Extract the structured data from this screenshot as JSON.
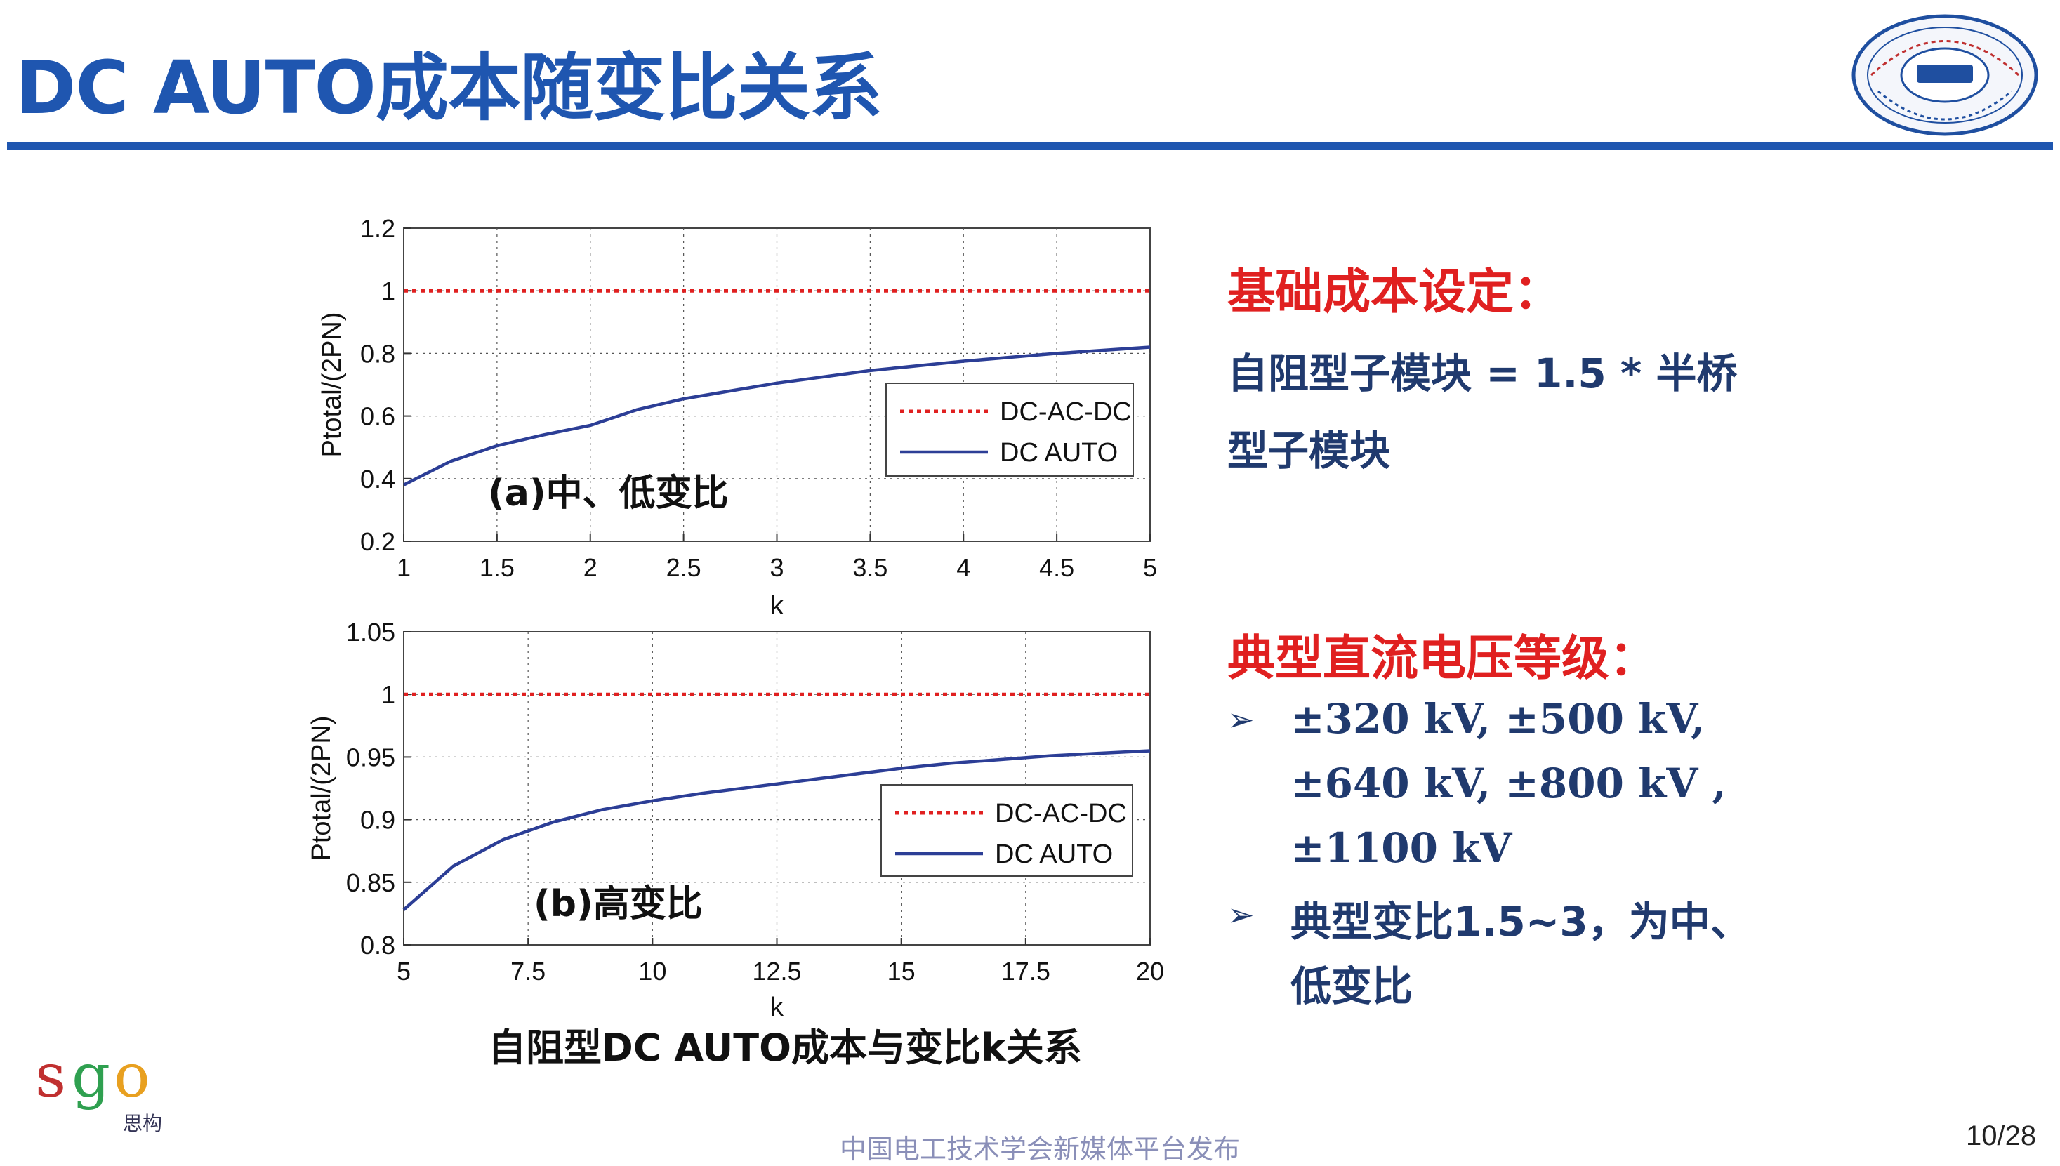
{
  "slide": {
    "title": "DC AUTO成本随变比关系",
    "caption": "自阻型DC AUTO成本与变比k关系",
    "footer": "中国电工技术学会新媒体平台发布",
    "page": "10/28",
    "accent_color": "#1f56b0",
    "heading_color": "#e02020",
    "body_color": "#203a6e",
    "logo_icon": "university-seal-icon",
    "sgo_logo": {
      "text": "sgo",
      "sub": "思构"
    }
  },
  "right_panel": {
    "heading1": "基础成本设定：",
    "line1": "自阻型子模块 = 1.5 * 半桥",
    "line2": "型子模块",
    "heading2": "典型直流电压等级：",
    "bullet_icon": "arrow-bullet-icon",
    "volt_line1": "±320 kV, ±500 kV,",
    "volt_line2": "±640 kV, ±800 kV ,",
    "volt_line3": "±1100 kV",
    "note_line1": "典型变比1.5~3，为中、",
    "note_line2": "低变比"
  },
  "chart_data": [
    {
      "type": "line",
      "annotation": "(a)中、低变比",
      "xlabel": "k",
      "ylabel": "Ptotal/(2PN)",
      "xlim": [
        1,
        5
      ],
      "ylim": [
        0.2,
        1.2
      ],
      "xticks": [
        "1",
        "1.5",
        "2",
        "2.5",
        "3",
        "3.5",
        "4",
        "4.5",
        "5"
      ],
      "yticks": [
        "0.2",
        "0.4",
        "0.6",
        "0.8",
        "1",
        "1.2"
      ],
      "grid": true,
      "legend_position": "right",
      "series": [
        {
          "name": "DC-AC-DC",
          "style": "dotted",
          "color": "#e02020",
          "x": [
            1,
            5
          ],
          "y": [
            1.0,
            1.0
          ]
        },
        {
          "name": "DC AUTO",
          "style": "solid",
          "color": "#2c3e96",
          "x": [
            1.0,
            1.25,
            1.5,
            1.75,
            2.0,
            2.25,
            2.5,
            2.75,
            3.0,
            3.5,
            4.0,
            4.5,
            5.0
          ],
          "y": [
            0.38,
            0.455,
            0.505,
            0.54,
            0.57,
            0.62,
            0.655,
            0.68,
            0.705,
            0.745,
            0.775,
            0.8,
            0.82
          ]
        }
      ]
    },
    {
      "type": "line",
      "annotation": "(b)高变比",
      "xlabel": "k",
      "ylabel": "Ptotal/(2PN)",
      "xlim": [
        5,
        20
      ],
      "ylim": [
        0.8,
        1.05
      ],
      "xticks": [
        "5",
        "7.5",
        "10",
        "12.5",
        "15",
        "17.5",
        "20"
      ],
      "yticks": [
        "0.8",
        "0.85",
        "0.9",
        "0.95",
        "1",
        "1.05"
      ],
      "grid": true,
      "legend_position": "right",
      "series": [
        {
          "name": "DC-AC-DC",
          "style": "dotted",
          "color": "#e02020",
          "x": [
            5,
            20
          ],
          "y": [
            1.0,
            1.0
          ]
        },
        {
          "name": "DC AUTO",
          "style": "solid",
          "color": "#2c3e96",
          "x": [
            5,
            6,
            7,
            8,
            9,
            10,
            11,
            12,
            13,
            14,
            15,
            16,
            17,
            18,
            19,
            20
          ],
          "y": [
            0.828,
            0.863,
            0.884,
            0.898,
            0.908,
            0.915,
            0.921,
            0.926,
            0.931,
            0.936,
            0.941,
            0.945,
            0.948,
            0.951,
            0.953,
            0.955
          ]
        }
      ]
    }
  ]
}
